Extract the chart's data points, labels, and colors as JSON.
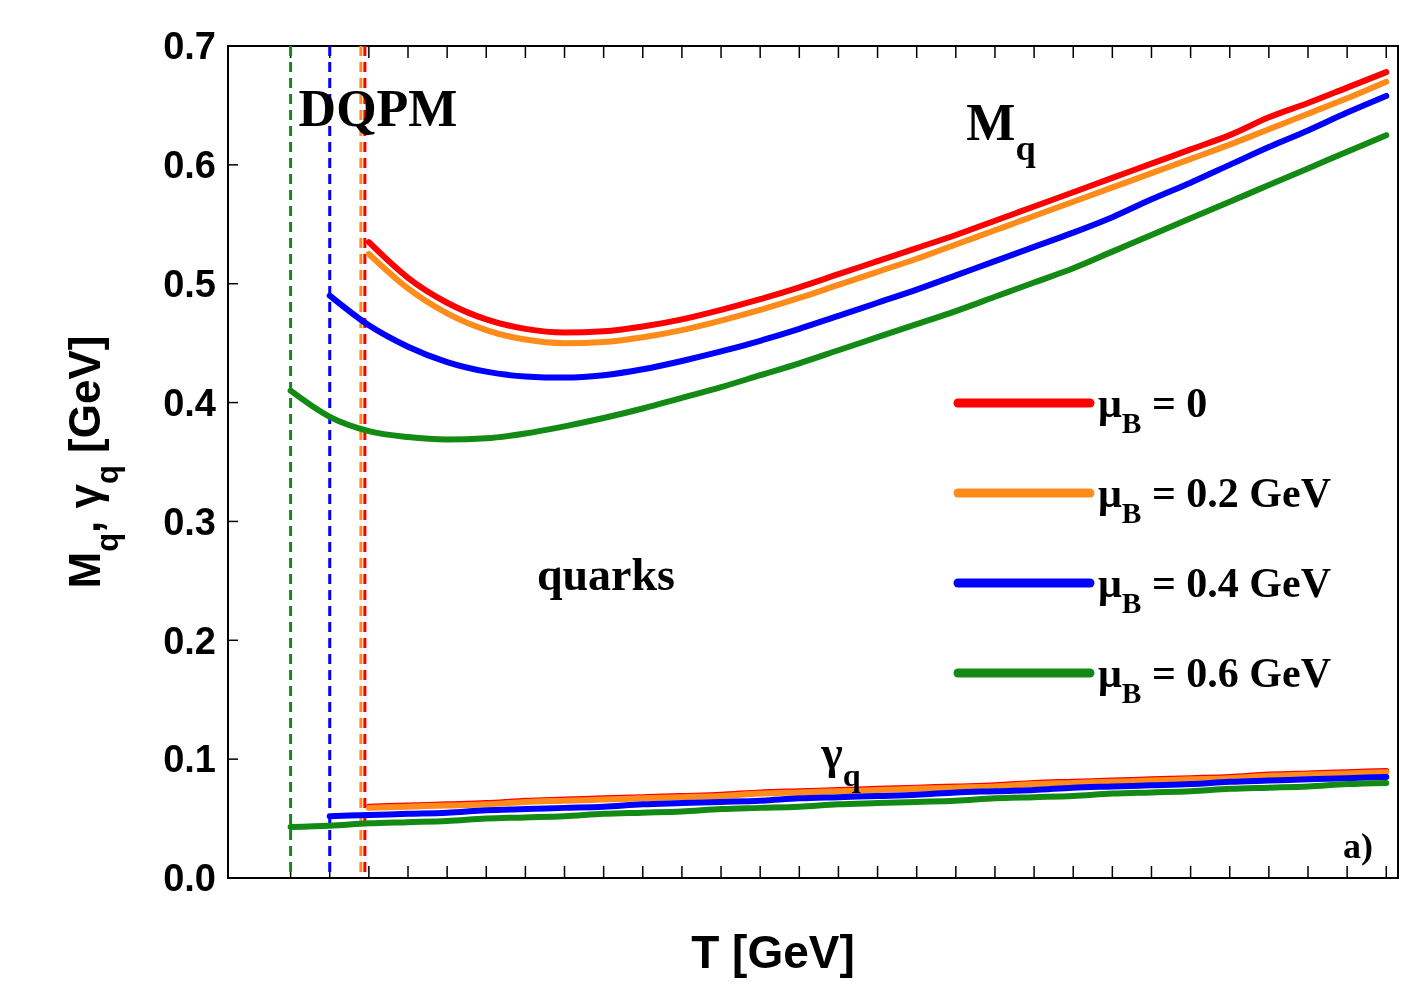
{
  "chart_data": {
    "type": "line",
    "xlabel": "T [GeV]",
    "ylabel": "M$_{q}$, γ$_{q}$ [GeV]",
    "categories": [
      null,
      null,
      null,
      null,
      null,
      null,
      null,
      null,
      null,
      null,
      null,
      null,
      null,
      null,
      null,
      null,
      null,
      null,
      null,
      null,
      null,
      null,
      null,
      null,
      null,
      null,
      null,
      null,
      null
    ],
    "ylim": [
      0,
      0.7
    ],
    "yticks": [
      {
        "value": 0,
        "label": "0.0"
      },
      0.1,
      0.2,
      0.3,
      0.4,
      0.5,
      0.6,
      0.7
    ],
    "tick_labels": "y",
    "grid": false,
    "legend": "right",
    "line_style": "solid",
    "marker": "none",
    "series": [
      {
        "name": "μ$_{B}$ = 0",
        "color": "#ff0000",
        "values": [
          null,
          null,
          0.535,
          0.505,
          0.484,
          0.47,
          0.462,
          0.459,
          0.46,
          0.464,
          0.47,
          0.478,
          0.487,
          0.497,
          0.508,
          0.519,
          0.53,
          0.541,
          0.553,
          0.565,
          0.577,
          0.589,
          0.601,
          0.613,
          0.625,
          0.64,
          0.652,
          0.665,
          0.678
        ]
      },
      {
        "name": "μ$_{B}$ = 0.2 GeV",
        "color": "#ff8c1a",
        "values": [
          null,
          null,
          0.525,
          0.496,
          0.475,
          0.461,
          0.453,
          0.45,
          0.451,
          0.455,
          0.461,
          0.469,
          0.478,
          0.488,
          0.499,
          0.51,
          0.521,
          0.533,
          0.545,
          0.557,
          0.569,
          0.581,
          0.593,
          0.605,
          0.617,
          0.63,
          0.643,
          0.656,
          0.67
        ]
      },
      {
        "name": "μ$_{B}$ = 0.4 GeV",
        "color": "#0000ff",
        "values": [
          null,
          0.49,
          0.465,
          0.447,
          0.434,
          0.426,
          0.422,
          0.421,
          0.423,
          0.428,
          0.435,
          0.443,
          0.452,
          0.462,
          0.473,
          0.484,
          0.495,
          0.507,
          0.519,
          0.531,
          0.543,
          0.556,
          0.571,
          0.585,
          0.6,
          0.615,
          0.629,
          0.644,
          0.658
        ]
      },
      {
        "name": "μ$_{B}$ = 0.6 GeV",
        "color": "#138a13",
        "values": [
          0.41,
          0.388,
          0.376,
          0.371,
          0.369,
          0.37,
          0.374,
          0.38,
          0.387,
          0.395,
          0.404,
          0.413,
          0.423,
          0.433,
          0.444,
          0.455,
          0.466,
          0.477,
          0.489,
          0.501,
          0.513,
          0.527,
          0.541,
          0.555,
          0.569,
          0.583,
          0.597,
          0.611,
          0.625
        ]
      },
      {
        "color": "#ff0000",
        "values": [
          null,
          null,
          0.06,
          0.061,
          0.062,
          0.063,
          0.065,
          0.066,
          0.067,
          0.068,
          0.069,
          0.07,
          0.072,
          0.073,
          0.074,
          0.075,
          0.076,
          0.077,
          0.078,
          0.08,
          0.081,
          0.082,
          0.083,
          0.084,
          0.085,
          0.087,
          0.088,
          0.089,
          0.09
        ]
      },
      {
        "color": "#ff8c1a",
        "values": [
          null,
          null,
          0.059,
          0.06,
          0.061,
          0.062,
          0.064,
          0.065,
          0.066,
          0.067,
          0.068,
          0.069,
          0.071,
          0.072,
          0.073,
          0.074,
          0.075,
          0.076,
          0.077,
          0.079,
          0.08,
          0.081,
          0.082,
          0.083,
          0.084,
          0.086,
          0.087,
          0.088,
          0.089
        ]
      },
      {
        "color": "#0000ff",
        "values": [
          null,
          0.052,
          0.053,
          0.054,
          0.055,
          0.057,
          0.058,
          0.059,
          0.06,
          0.062,
          0.063,
          0.064,
          0.065,
          0.067,
          0.068,
          0.069,
          0.07,
          0.072,
          0.073,
          0.074,
          0.076,
          0.077,
          0.078,
          0.079,
          0.081,
          0.082,
          0.083,
          0.084,
          0.085
        ]
      },
      {
        "color": "#138a13",
        "values": [
          0.043,
          0.044,
          0.046,
          0.047,
          0.048,
          0.05,
          0.051,
          0.052,
          0.054,
          0.055,
          0.056,
          0.058,
          0.059,
          0.06,
          0.062,
          0.063,
          0.064,
          0.065,
          0.067,
          0.068,
          0.069,
          0.071,
          0.072,
          0.073,
          0.075,
          0.076,
          0.077,
          0.079,
          0.08
        ]
      }
    ],
    "annotations": [
      "DQPM",
      "M$_{q}$",
      "quarks",
      "γ$_{q}$",
      "a)"
    ]
  }
}
